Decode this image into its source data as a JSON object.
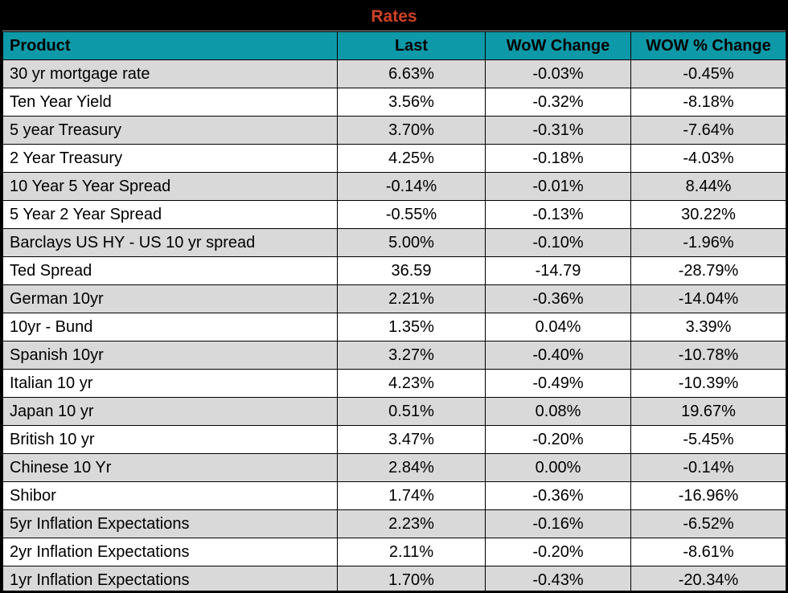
{
  "title": "Rates",
  "colors": {
    "title_text": "#CE4125",
    "title_bg": "#000000",
    "header_bg": "#0E99A8",
    "header_text": "#000000",
    "row_alt_bg": "#D9D9D9",
    "row_bg": "#FFFFFF",
    "grid": "#000000"
  },
  "table": {
    "columns": [
      "Product",
      "Last",
      "WoW Change",
      "WOW % Change"
    ],
    "rows": [
      [
        "30 yr mortgage rate",
        "6.63%",
        "-0.03%",
        "-0.45%"
      ],
      [
        "Ten Year Yield",
        "3.56%",
        "-0.32%",
        "-8.18%"
      ],
      [
        "5 year Treasury",
        "3.70%",
        "-0.31%",
        "-7.64%"
      ],
      [
        "2 Year Treasury",
        "4.25%",
        "-0.18%",
        "-4.03%"
      ],
      [
        "10 Year 5 Year Spread",
        "-0.14%",
        "-0.01%",
        "8.44%"
      ],
      [
        "5 Year 2 Year Spread",
        "-0.55%",
        "-0.13%",
        "30.22%"
      ],
      [
        "Barclays US HY - US 10 yr spread",
        "5.00%",
        "-0.10%",
        "-1.96%"
      ],
      [
        "Ted Spread",
        "36.59",
        "-14.79",
        "-28.79%"
      ],
      [
        "German 10yr",
        "2.21%",
        "-0.36%",
        "-14.04%"
      ],
      [
        "10yr - Bund",
        "1.35%",
        "0.04%",
        "3.39%"
      ],
      [
        "Spanish 10yr",
        "3.27%",
        "-0.40%",
        "-10.78%"
      ],
      [
        "Italian 10 yr",
        "4.23%",
        "-0.49%",
        "-10.39%"
      ],
      [
        "Japan 10 yr",
        "0.51%",
        "0.08%",
        "19.67%"
      ],
      [
        "British 10 yr",
        "3.47%",
        "-0.20%",
        "-5.45%"
      ],
      [
        "Chinese 10 Yr",
        "2.84%",
        "0.00%",
        "-0.14%"
      ],
      [
        "Shibor",
        "1.74%",
        "-0.36%",
        "-16.96%"
      ],
      [
        "5yr Inflation Expectations",
        "2.23%",
        "-0.16%",
        "-6.52%"
      ],
      [
        "2yr Inflation Expectations",
        "2.11%",
        "-0.20%",
        "-8.61%"
      ],
      [
        "1yr Inflation Expectations",
        "1.70%",
        "-0.43%",
        "-20.34%"
      ]
    ]
  }
}
